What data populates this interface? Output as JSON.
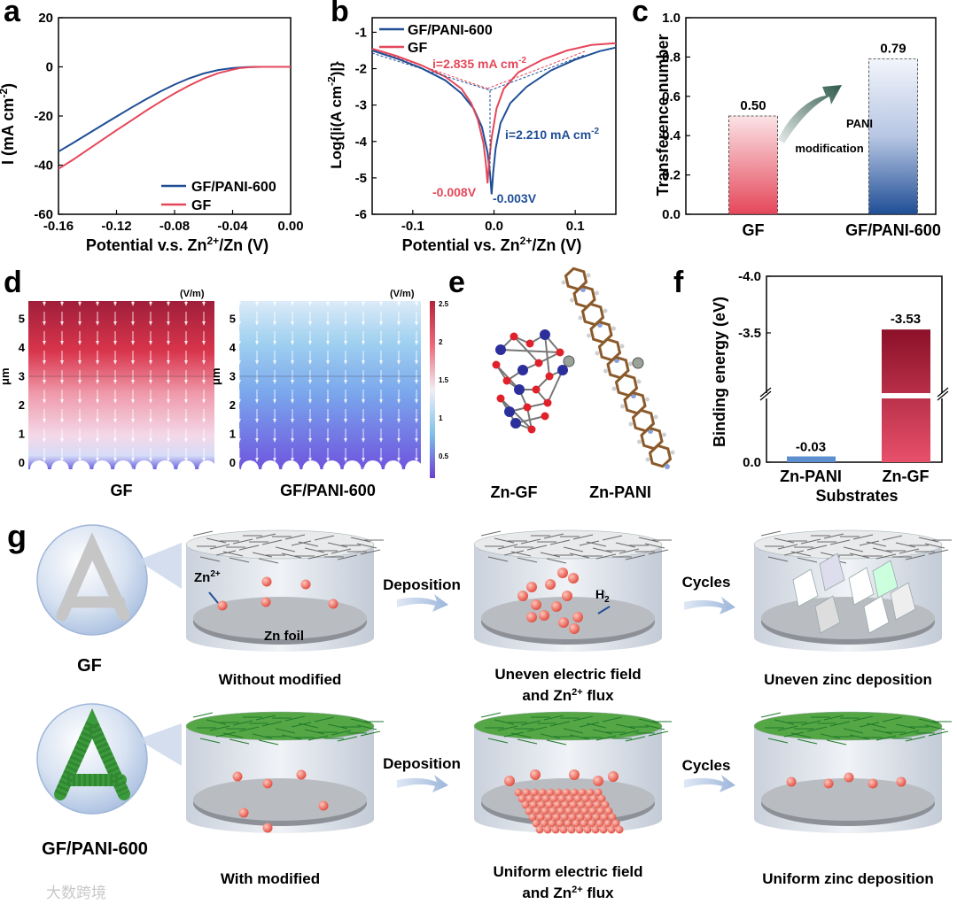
{
  "panel_letters": {
    "a": "a",
    "b": "b",
    "c": "c",
    "d": "d",
    "e": "e",
    "f": "f",
    "g": "g"
  },
  "chart_data": [
    {
      "id": "a",
      "type": "line",
      "xlabel_main": "Potential v.s. Zn",
      "xlabel_sup": "2+",
      "xlabel_end": "/Zn (V)",
      "ylabel_main": "I (mA cm",
      "ylabel_sup": "-2",
      "ylabel_end": ")",
      "xlim": [
        -0.16,
        0.0
      ],
      "ylim": [
        -60,
        20
      ],
      "xticks": [
        -0.16,
        -0.12,
        -0.08,
        -0.04,
        0.0
      ],
      "xtick_labels": [
        "-0.16",
        "-0.12",
        "-0.08",
        "-0.04",
        "0.00"
      ],
      "yticks": [
        -60,
        -40,
        -20,
        0,
        20
      ],
      "ytick_labels": [
        "-60",
        "-40",
        "-20",
        "0",
        "20"
      ],
      "legend": [
        "GF/PANI-600",
        "GF"
      ],
      "series": [
        {
          "name": "GF/PANI-600",
          "color": "#1f4e96",
          "x": [
            -0.16,
            -0.15,
            -0.14,
            -0.13,
            -0.12,
            -0.11,
            -0.1,
            -0.09,
            -0.08,
            -0.07,
            -0.06,
            -0.05,
            -0.04,
            -0.035,
            -0.03,
            -0.025,
            -0.02,
            -0.015,
            -0.01,
            0.0
          ],
          "y": [
            -34.5,
            -31,
            -27.4,
            -23.8,
            -20.2,
            -16.7,
            -13.3,
            -10.1,
            -7.2,
            -4.7,
            -2.7,
            -1.3,
            -0.5,
            -0.25,
            -0.1,
            -0.05,
            0,
            0,
            0,
            0
          ]
        },
        {
          "name": "GF",
          "color": "#e5475a",
          "x": [
            -0.16,
            -0.15,
            -0.14,
            -0.13,
            -0.12,
            -0.11,
            -0.1,
            -0.09,
            -0.08,
            -0.07,
            -0.06,
            -0.05,
            -0.04,
            -0.035,
            -0.03,
            -0.025,
            -0.02,
            -0.015,
            -0.01,
            0.0
          ],
          "y": [
            -41.5,
            -37.8,
            -33.8,
            -29.8,
            -25.8,
            -21.9,
            -18,
            -14.3,
            -10.8,
            -7.6,
            -4.8,
            -2.6,
            -1.1,
            -0.5,
            -0.2,
            -0.05,
            0,
            0,
            0,
            0
          ]
        }
      ]
    },
    {
      "id": "b",
      "type": "line",
      "xlabel_main": "Potential vs. Zn",
      "xlabel_sup": "2+",
      "xlabel_end": "/Zn (V)",
      "ylabel_main": "Log{|i(A cm",
      "ylabel_sup": "-2",
      "ylabel_end": ")|}",
      "xlim": [
        -0.15,
        0.15
      ],
      "ylim": [
        -6,
        -0.6
      ],
      "xticks": [
        -0.1,
        0.0,
        0.1
      ],
      "xtick_labels": [
        "-0.1",
        "0.0",
        "0.1"
      ],
      "yticks": [
        -6,
        -5,
        -4,
        -3,
        -2,
        -1
      ],
      "ytick_labels": [
        "-6",
        "-5",
        "-4",
        "-3",
        "-2",
        "-1"
      ],
      "legend": [
        "GF/PANI-600",
        "GF"
      ],
      "annotations": [
        {
          "text": "i=2.835 mA cm",
          "sup": "-2",
          "color": "#e5475a"
        },
        {
          "text": "i=2.210 mA cm",
          "sup": "-2",
          "color": "#1f4e96"
        },
        {
          "text": "-0.008V",
          "color": "#e5475a"
        },
        {
          "text": "-0.003V",
          "color": "#1f4e96"
        }
      ],
      "series": [
        {
          "name": "GF/PANI-600",
          "color": "#1f4e96",
          "x": [
            -0.15,
            -0.12,
            -0.09,
            -0.06,
            -0.04,
            -0.025,
            -0.015,
            -0.008,
            -0.005,
            -0.003,
            -0.001,
            0.002,
            0.008,
            0.02,
            0.04,
            0.07,
            0.1,
            0.13,
            0.15
          ],
          "y": [
            -1.5,
            -1.72,
            -1.98,
            -2.32,
            -2.68,
            -3.1,
            -3.6,
            -4.3,
            -4.85,
            -5.45,
            -4.85,
            -4.2,
            -3.5,
            -2.95,
            -2.5,
            -2.05,
            -1.75,
            -1.52,
            -1.42
          ]
        },
        {
          "name": "GF",
          "color": "#e5475a",
          "x": [
            -0.15,
            -0.12,
            -0.09,
            -0.06,
            -0.04,
            -0.028,
            -0.02,
            -0.013,
            -0.01,
            -0.008,
            -0.006,
            -0.003,
            0.003,
            0.012,
            0.03,
            0.06,
            0.09,
            0.12,
            0.15
          ],
          "y": [
            -1.45,
            -1.65,
            -1.9,
            -2.22,
            -2.55,
            -2.95,
            -3.4,
            -4.05,
            -4.6,
            -5.15,
            -4.55,
            -3.9,
            -3.1,
            -2.55,
            -2.1,
            -1.75,
            -1.5,
            -1.35,
            -1.3
          ]
        }
      ]
    },
    {
      "id": "c",
      "type": "bar",
      "ylabel": "Transference number",
      "categories": [
        "GF",
        "GF/PANI-600"
      ],
      "values": [
        0.5,
        0.79
      ],
      "value_labels": [
        "0.50",
        "0.79"
      ],
      "ylim": [
        0.0,
        1.0
      ],
      "yticks": [
        0.0,
        0.2,
        0.4,
        0.6,
        0.8,
        1.0
      ],
      "ytick_labels": [
        "0.0",
        "0.2",
        "0.4",
        "0.6",
        "0.8",
        "1.0"
      ],
      "arrow_label_1": "PANI",
      "arrow_label_2": "modification",
      "colors": [
        "#e5475a",
        "#1f4e96"
      ]
    },
    {
      "id": "f",
      "type": "bar",
      "ylabel": "Binding energy (eV)",
      "xlabel": "Substrates",
      "categories": [
        "Zn-PANI",
        "Zn-GF"
      ],
      "values": [
        -0.03,
        -3.53
      ],
      "value_labels": [
        "-0.03",
        "-3.53"
      ],
      "yticks": [
        0.0,
        -3.5,
        -4.0
      ],
      "ytick_labels": [
        "0.0",
        "-3.5",
        "-4.0"
      ],
      "axis_break": true,
      "colors": [
        "#5b8fd0",
        "#c4213b"
      ]
    }
  ],
  "panel_d": {
    "unit": "(V/m)",
    "axis_label": "μm",
    "ticks": [
      "0",
      "1",
      "2",
      "3",
      "4",
      "5"
    ],
    "colorbar_ticks": [
      "2.5",
      "2",
      "1.5",
      "1",
      "0.5"
    ],
    "captions": [
      "GF",
      "GF/PANI-600"
    ]
  },
  "panel_e": {
    "captions": [
      "Zn-GF",
      "Zn-PANI"
    ]
  },
  "panel_g": {
    "row1": {
      "label": "GF",
      "ion": "Zn",
      "ion_sup": "2+",
      "foil": "Zn foil",
      "h2": "H",
      "h2_sub": "2",
      "arrow1": "Deposition",
      "arrow2": "Cycles",
      "caption1": "Without modified",
      "caption2a": "Uneven electric field",
      "caption2b": "and Zn",
      "caption2b_sup": "2+",
      "caption2c": " flux",
      "caption3": "Uneven zinc deposition"
    },
    "row2": {
      "label": "GF/PANI-600",
      "arrow1": "Deposition",
      "arrow2": "Cycles",
      "caption1": "With modified",
      "caption2a": "Uniform electric field",
      "caption2b": "and Zn",
      "caption2b_sup": "2+",
      "caption2c": " flux",
      "caption3": "Uniform zinc deposition"
    },
    "watermark": "大数跨境"
  }
}
